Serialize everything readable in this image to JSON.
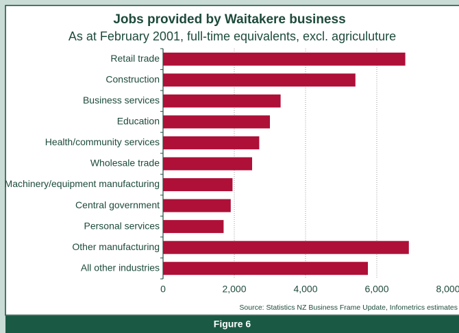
{
  "chart_data": {
    "type": "bar",
    "orientation": "horizontal",
    "title": "Jobs provided by Waitakere business",
    "subtitle": "As at February 2001, full-time equivalents, excl. agriculuture",
    "categories": [
      "Retail trade",
      "Construction",
      "Business services",
      "Education",
      "Health/community services",
      "Wholesale trade",
      "Machinery/equipment manufacturing",
      "Central government",
      "Personal services",
      "Other manufacturing",
      "All other industries"
    ],
    "values": [
      6800,
      5400,
      3300,
      3000,
      2700,
      2500,
      1950,
      1900,
      1700,
      6900,
      5750
    ],
    "color": "#ae1038",
    "xlim": [
      0,
      8000
    ],
    "xticks": [
      0,
      {
        "value": 2000,
        "label": "2,000"
      },
      {
        "value": 4000,
        "label": "4,000"
      },
      {
        "value": 6000,
        "label": "6,000"
      },
      {
        "value": 8000,
        "label": "8,000"
      }
    ],
    "grid": true,
    "source": "Source: Statistics NZ Business Frame Update, Infometrics estimates",
    "figure_label": "Figure 6"
  }
}
